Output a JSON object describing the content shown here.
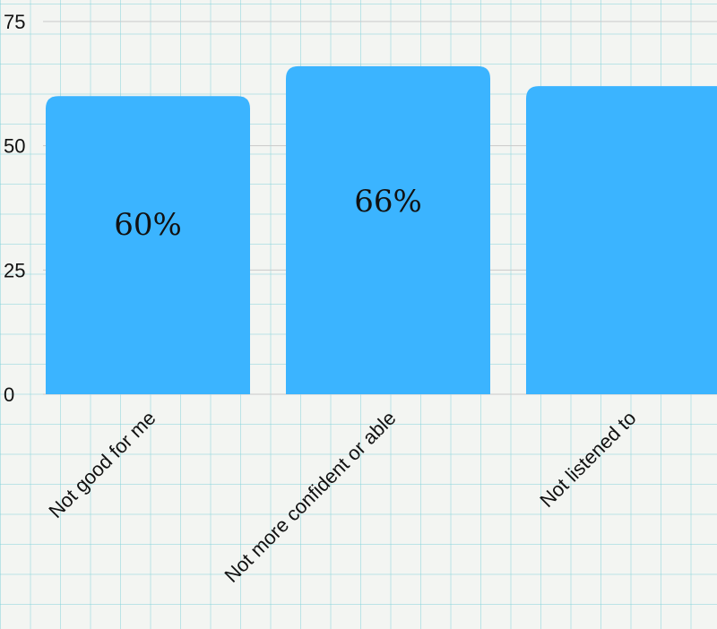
{
  "chart_data": {
    "type": "bar",
    "categories": [
      "Not good for me",
      "Not more confident or able",
      "Not listened to"
    ],
    "values": [
      60,
      66,
      62
    ],
    "data_labels": [
      "60%",
      "66%",
      ""
    ],
    "ylim": [
      0,
      75
    ],
    "yticks": [
      0,
      25,
      50,
      75
    ],
    "bar_color": "#3bb4ff",
    "grid": true,
    "title": "",
    "xlabel": "",
    "ylabel": ""
  }
}
